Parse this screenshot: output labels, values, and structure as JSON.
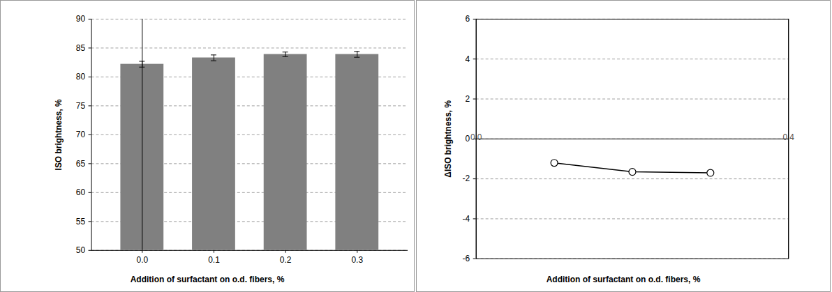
{
  "chart_data": [
    {
      "type": "bar",
      "x_label": "Addition of surfactant on o.d. fibers, %",
      "y_label": "ISO brightness, %",
      "categories": [
        "0.0",
        "0.1",
        "0.2",
        "0.3"
      ],
      "values": [
        82.2,
        83.3,
        83.9,
        83.9
      ],
      "errors": [
        0.5,
        0.5,
        0.4,
        0.5
      ],
      "color": "#808080",
      "ylim": [
        50,
        90
      ],
      "yticks": [
        50,
        55,
        60,
        65,
        70,
        75,
        80,
        85,
        90
      ],
      "grid": true
    },
    {
      "type": "line",
      "x_label": "Addition of surfactant on o.d. fibers, %",
      "y_label": "ΔISO brightness, %",
      "x": [
        0.1,
        0.2,
        0.3
      ],
      "values": [
        -1.2,
        -1.65,
        -1.7
      ],
      "color": "#000000",
      "marker": "circle",
      "xlim": [
        0,
        0.4
      ],
      "xticks": [
        {
          "value": 0,
          "label": "0.0"
        },
        {
          "value": 0.4,
          "label": "0.4"
        }
      ],
      "ylim": [
        -6,
        6
      ],
      "yticks": [
        -6,
        -4,
        -2,
        0,
        2,
        4,
        6
      ],
      "grid": true
    }
  ]
}
